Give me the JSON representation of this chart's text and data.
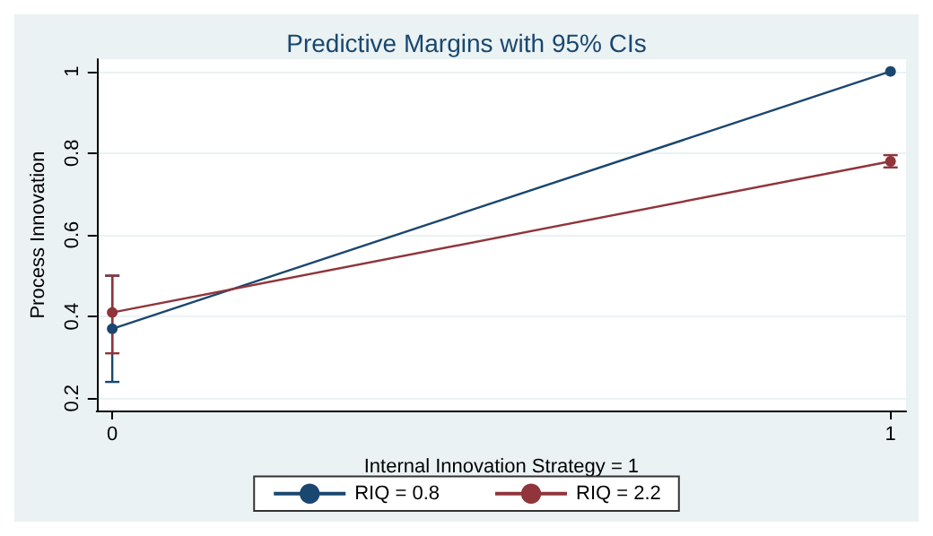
{
  "chart_data": {
    "type": "line",
    "title": "Predictive Margins with 95% CIs",
    "xlabel": "Internal Innovation Strategy = 1",
    "ylabel": "Process Innovation",
    "x": [
      0,
      1
    ],
    "xlim": [
      -0.02,
      1.02
    ],
    "xticks": [
      0,
      1
    ],
    "ylim": [
      0.17,
      1.03
    ],
    "yticks": [
      0.2,
      0.4,
      0.6,
      0.8,
      1
    ],
    "grid": "y",
    "legend": "bottom",
    "marker": "circle",
    "line_style": "solid",
    "series": [
      {
        "name": "RIQ = 0.8",
        "color": "#1a476f",
        "values": [
          0.37,
          1.0
        ],
        "errors": [
          [
            0.24,
            0.5
          ],
          null
        ]
      },
      {
        "name": "RIQ = 2.2",
        "color": "#90353b",
        "values": [
          0.41,
          0.78
        ],
        "errors": [
          [
            0.31,
            0.5
          ],
          [
            0.765,
            0.795
          ]
        ]
      }
    ]
  }
}
